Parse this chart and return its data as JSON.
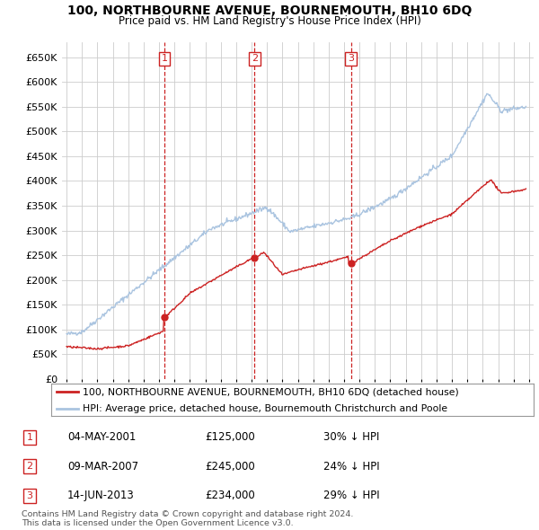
{
  "title": "100, NORTHBOURNE AVENUE, BOURNEMOUTH, BH10 6DQ",
  "subtitle": "Price paid vs. HM Land Registry's House Price Index (HPI)",
  "legend_red": "100, NORTHBOURNE AVENUE, BOURNEMOUTH, BH10 6DQ (detached house)",
  "legend_blue": "HPI: Average price, detached house, Bournemouth Christchurch and Poole",
  "footer1": "Contains HM Land Registry data © Crown copyright and database right 2024.",
  "footer2": "This data is licensed under the Open Government Licence v3.0.",
  "transactions": [
    {
      "num": "1",
      "date": "04-MAY-2001",
      "price": "£125,000",
      "pct": "30% ↓ HPI",
      "year": 2001.35,
      "value": 125000
    },
    {
      "num": "2",
      "date": "09-MAR-2007",
      "price": "£245,000",
      "pct": "24% ↓ HPI",
      "year": 2007.19,
      "value": 245000
    },
    {
      "num": "3",
      "date": "14-JUN-2013",
      "price": "£234,000",
      "pct": "29% ↓ HPI",
      "year": 2013.45,
      "value": 234000
    }
  ],
  "hpi_color": "#aac4e0",
  "price_color": "#cc2222",
  "marker_color": "#cc2222",
  "vline_color": "#cc2222",
  "background_color": "#ffffff",
  "grid_color": "#cccccc",
  "ylim": [
    0,
    680000
  ],
  "yticks": [
    0,
    50000,
    100000,
    150000,
    200000,
    250000,
    300000,
    350000,
    400000,
    450000,
    500000,
    550000,
    600000,
    650000
  ],
  "xlim_start": 1994.7,
  "xlim_end": 2025.3
}
